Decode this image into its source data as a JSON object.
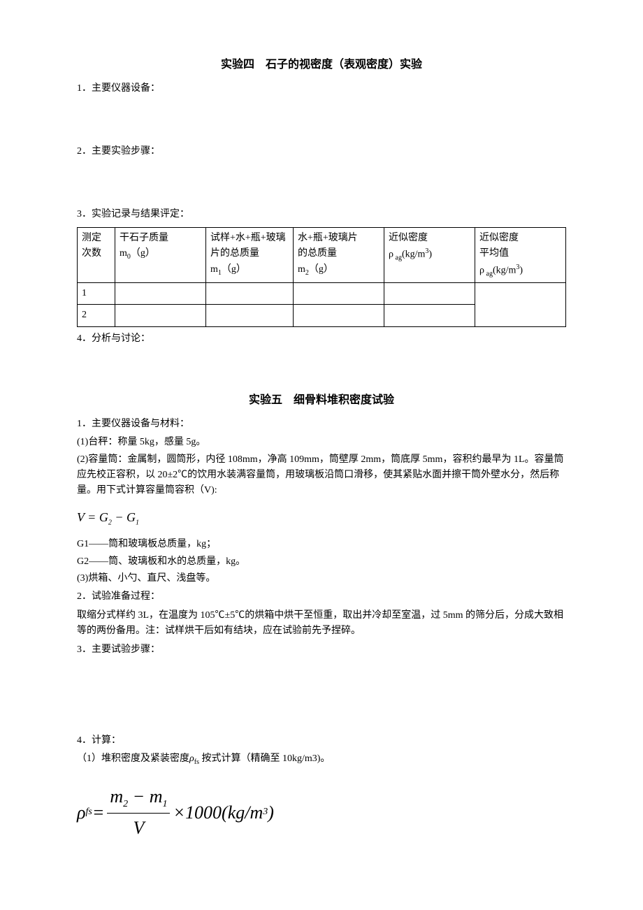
{
  "exp4": {
    "title": "实验四　石子的视密度（表观密度）实验",
    "s1": "1．主要仪器设备：",
    "s2": "2．主要实验步骤：",
    "s3": "3．实验记录与结果评定：",
    "s4": "4．分析与讨论：",
    "table": {
      "h1a": "测定",
      "h1b": "次数",
      "h2a": "干石子质量",
      "h2b": "m",
      "h2c": "0",
      "h2d": "（g）",
      "h3a": "试样+水+瓶+玻璃",
      "h3b": "片的总质量",
      "h3c": "m",
      "h3d": "1",
      "h3e": "（g）",
      "h4a": "水+瓶+玻璃片",
      "h4b": "的总质量",
      "h4c": "m",
      "h4d": "2",
      "h4e": "（g）",
      "h5a": "近似密度",
      "h5b": "ρ",
      "h5c": " ag",
      "h5d": "(kg/m",
      "h5e": "3",
      "h5f": ")",
      "h6a": "近似密度",
      "h6b": "平均值",
      "h6c": "ρ",
      "h6d": " ag",
      "h6e": "(kg/m",
      "h6f": "3",
      "h6g": ")",
      "row1": "1",
      "row2": "2"
    }
  },
  "exp5": {
    "title": "实验五　细骨料堆积密度试验",
    "s1": "1．主要仪器设备与材料：",
    "p1": "(1)台秤：称量 5kg，感量 5g。",
    "p2": "(2)容量筒：金属制，圆筒形，内径 108mm，净高 109mm，筒壁厚 2mm，筒底厚 5mm，容积约最早为 1L。容量筒应先校正容积，以 20±2℃的饮用水装满容量筒，用玻璃板沿筒口滑移，使其紧贴水面并擦干筒外壁水分，然后称量。用下式计算容量筒容积（V):",
    "formula1_v": "V",
    "formula1_eq": " = ",
    "formula1_g2": "G",
    "formula1_s2": "2",
    "formula1_minus": " − ",
    "formula1_g1": "G",
    "formula1_s1": "1",
    "p3": "G1——筒和玻璃板总质量，kg；",
    "p4": "G2——筒、玻璃板和水的总质量，kg。",
    "p5": "(3)烘箱、小勺、直尺、浅盘等。",
    "s2": "2．试验准备过程：",
    "p6": "取缩分式样约 3L，在温度为 105℃±5℃的烘箱中烘干至恒重，取出并冷却至室温，过 5mm 的筛分后，分成大致相等的两份备用。注：试样烘干后如有结块，应在试验前先予捏碎。",
    "s3": "3．主要试验步骤：",
    "s4": "4．计算：",
    "p7a": "（1）堆积密度及紧装密度",
    "p7b": "ρ",
    "p7c": "fs",
    "p7d": " 按式计算（精确至 10kg/m3)。",
    "formula2": {
      "rho": "ρ",
      "fs": "fs",
      "eq": " = ",
      "num_m2": "m",
      "num_s2": "2",
      "num_minus": " − ",
      "num_m1": "m",
      "num_s1": "1",
      "den": "V",
      "mult": " ×1000(",
      "kg": "kg",
      "slash": " / ",
      "m": "m",
      "cube": "3",
      "close": ")"
    }
  }
}
